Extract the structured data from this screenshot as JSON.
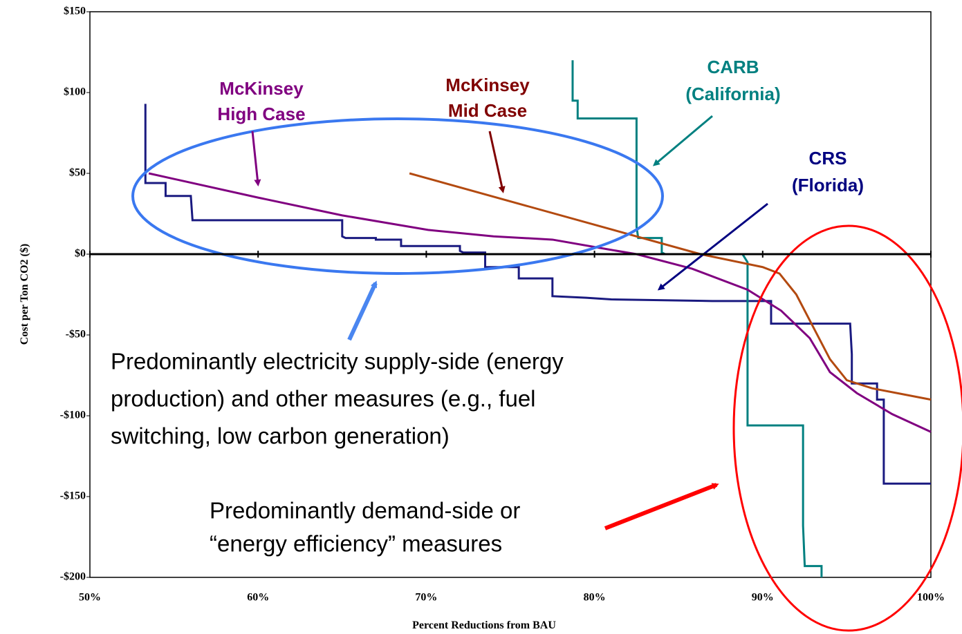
{
  "chart_data": {
    "type": "line",
    "xlabel": "Percent Reductions from BAU",
    "ylabel": "Cost per Ton CO2 ($)",
    "xlim": [
      50,
      100
    ],
    "xticks": [
      {
        "value": 50,
        "label": "50%"
      },
      {
        "value": 60,
        "label": "60%"
      },
      {
        "value": 70,
        "label": "70%"
      },
      {
        "value": 80,
        "label": "80%"
      },
      {
        "value": 90,
        "label": "90%"
      },
      {
        "value": 100,
        "label": "100%"
      }
    ],
    "ylim": [
      -200,
      150
    ],
    "yticks": [
      {
        "value": 150,
        "label": "$150"
      },
      {
        "value": 100,
        "label": "$100"
      },
      {
        "value": 50,
        "label": "$50"
      },
      {
        "value": 0,
        "label": "$0"
      },
      {
        "value": -50,
        "label": "-$50"
      },
      {
        "value": -100,
        "label": "-$100"
      },
      {
        "value": -150,
        "label": "-$150"
      },
      {
        "value": -200,
        "label": "-$200"
      }
    ],
    "series": [
      {
        "name": "CRS (Florida)",
        "color": "#1a1a80",
        "x": [
          53.3,
          53.3,
          54.5,
          54.5,
          56,
          56.1,
          65,
          65,
          65.2,
          67,
          67,
          68.5,
          68.5,
          72,
          72,
          72.2,
          73.5,
          73.5,
          75.5,
          75.5,
          77.5,
          77.5,
          79.5,
          81,
          87,
          90.5,
          90.5,
          95.2,
          95.3,
          95.3,
          96.8,
          96.8,
          97.2,
          97.2,
          100
        ],
        "values": [
          93,
          44,
          44,
          36,
          36,
          21,
          21,
          11,
          10,
          10,
          9,
          9,
          5,
          5,
          2,
          1,
          1,
          -8,
          -8,
          -15,
          -15,
          -26,
          -27,
          -28,
          -29,
          -29,
          -43,
          -43,
          -62,
          -80,
          -80,
          -90,
          -90,
          -142,
          -142
        ]
      },
      {
        "name": "CARB (California)",
        "color": "#008080",
        "x": [
          78.7,
          78.7,
          79,
          79,
          82.5,
          82.5,
          82.6,
          84,
          84,
          84.2,
          88.8,
          89.1,
          89.1,
          92.4,
          92.4,
          92.5,
          93.5,
          93.5
        ],
        "values": [
          120,
          95,
          95,
          84,
          84,
          17,
          10,
          10,
          1,
          0,
          0,
          -5,
          -106,
          -106,
          -168,
          -193,
          -193,
          -200
        ]
      },
      {
        "name": "McKinsey High Case",
        "color": "#800080",
        "x": [
          53.5,
          60,
          65,
          70.1,
          74,
          77.5,
          80.8,
          82.5,
          85.8,
          89.1,
          91.1,
          92.8,
          94,
          95.6,
          97.7,
          100
        ],
        "values": [
          50,
          35,
          24,
          15,
          11,
          9,
          3,
          0,
          -9,
          -22,
          -35,
          -52,
          -73,
          -86,
          -99,
          -110
        ]
      },
      {
        "name": "McKinsey Mid Case",
        "color": "#b34a10",
        "x": [
          69,
          86.3,
          90,
          91,
          92,
          93,
          94,
          95,
          96.5,
          98,
          100
        ],
        "values": [
          50,
          0,
          -8,
          -12,
          -25,
          -45,
          -65,
          -78,
          -83,
          -86,
          -90
        ]
      }
    ],
    "annotations": [
      {
        "lines": [
          "McKinsey",
          "High Case"
        ],
        "color": "#800080"
      },
      {
        "lines": [
          "McKinsey",
          "Mid Case"
        ],
        "color": "#800000"
      },
      {
        "lines": [
          "CARB",
          "(California)"
        ],
        "color": "#008080"
      },
      {
        "lines": [
          "CRS",
          "(Florida)"
        ],
        "color": "#000080"
      },
      {
        "lines": [
          "Predominantly electricity supply-side (energy",
          "production) and other measures  (e.g., fuel",
          "switching, low carbon generation)"
        ],
        "color": "#000000"
      },
      {
        "lines": [
          "Predominantly demand-side or",
          "“energy efficiency” measures"
        ],
        "color": "#000000"
      }
    ]
  }
}
